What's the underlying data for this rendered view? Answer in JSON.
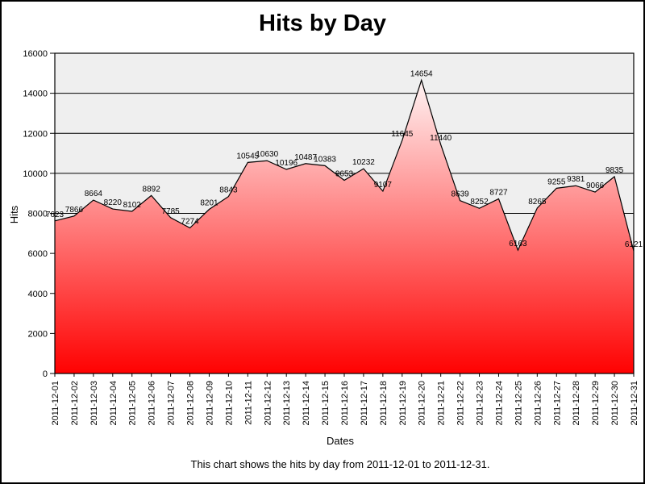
{
  "title": "Hits by Day",
  "caption": "This chart shows the hits by day from 2011-12-01 to 2011-12-31.",
  "chart_data": {
    "type": "area",
    "title": "Hits by Day",
    "xlabel": "Dates",
    "ylabel": "Hits",
    "ylim": [
      0,
      16000
    ],
    "ytick_interval": 2000,
    "grid": true,
    "legend": "none",
    "categories": [
      "2011-12-01",
      "2011-12-02",
      "2011-12-03",
      "2011-12-04",
      "2011-12-05",
      "2011-12-06",
      "2011-12-07",
      "2011-12-08",
      "2011-12-09",
      "2011-12-10",
      "2011-12-11",
      "2011-12-12",
      "2011-12-13",
      "2011-12-14",
      "2011-12-15",
      "2011-12-16",
      "2011-12-17",
      "2011-12-18",
      "2011-12-19",
      "2011-12-20",
      "2011-12-21",
      "2011-12-22",
      "2011-12-23",
      "2011-12-24",
      "2011-12-25",
      "2011-12-26",
      "2011-12-27",
      "2011-12-28",
      "2011-12-29",
      "2011-12-30",
      "2011-12-31"
    ],
    "values": [
      7623,
      7866,
      8664,
      8220,
      8102,
      8892,
      7785,
      7274,
      8201,
      8843,
      10545,
      10630,
      10196,
      10487,
      10383,
      9653,
      10232,
      9107,
      11645,
      14654,
      11440,
      8639,
      8252,
      8727,
      6163,
      8265,
      9255,
      9381,
      9066,
      9835,
      6121
    ],
    "colors": {
      "plot_bg": "#efefef",
      "grid": "#000000",
      "line": "#000000",
      "area_top": "#ffffff",
      "area_bottom": "#ff0000",
      "text": "#000000"
    }
  }
}
